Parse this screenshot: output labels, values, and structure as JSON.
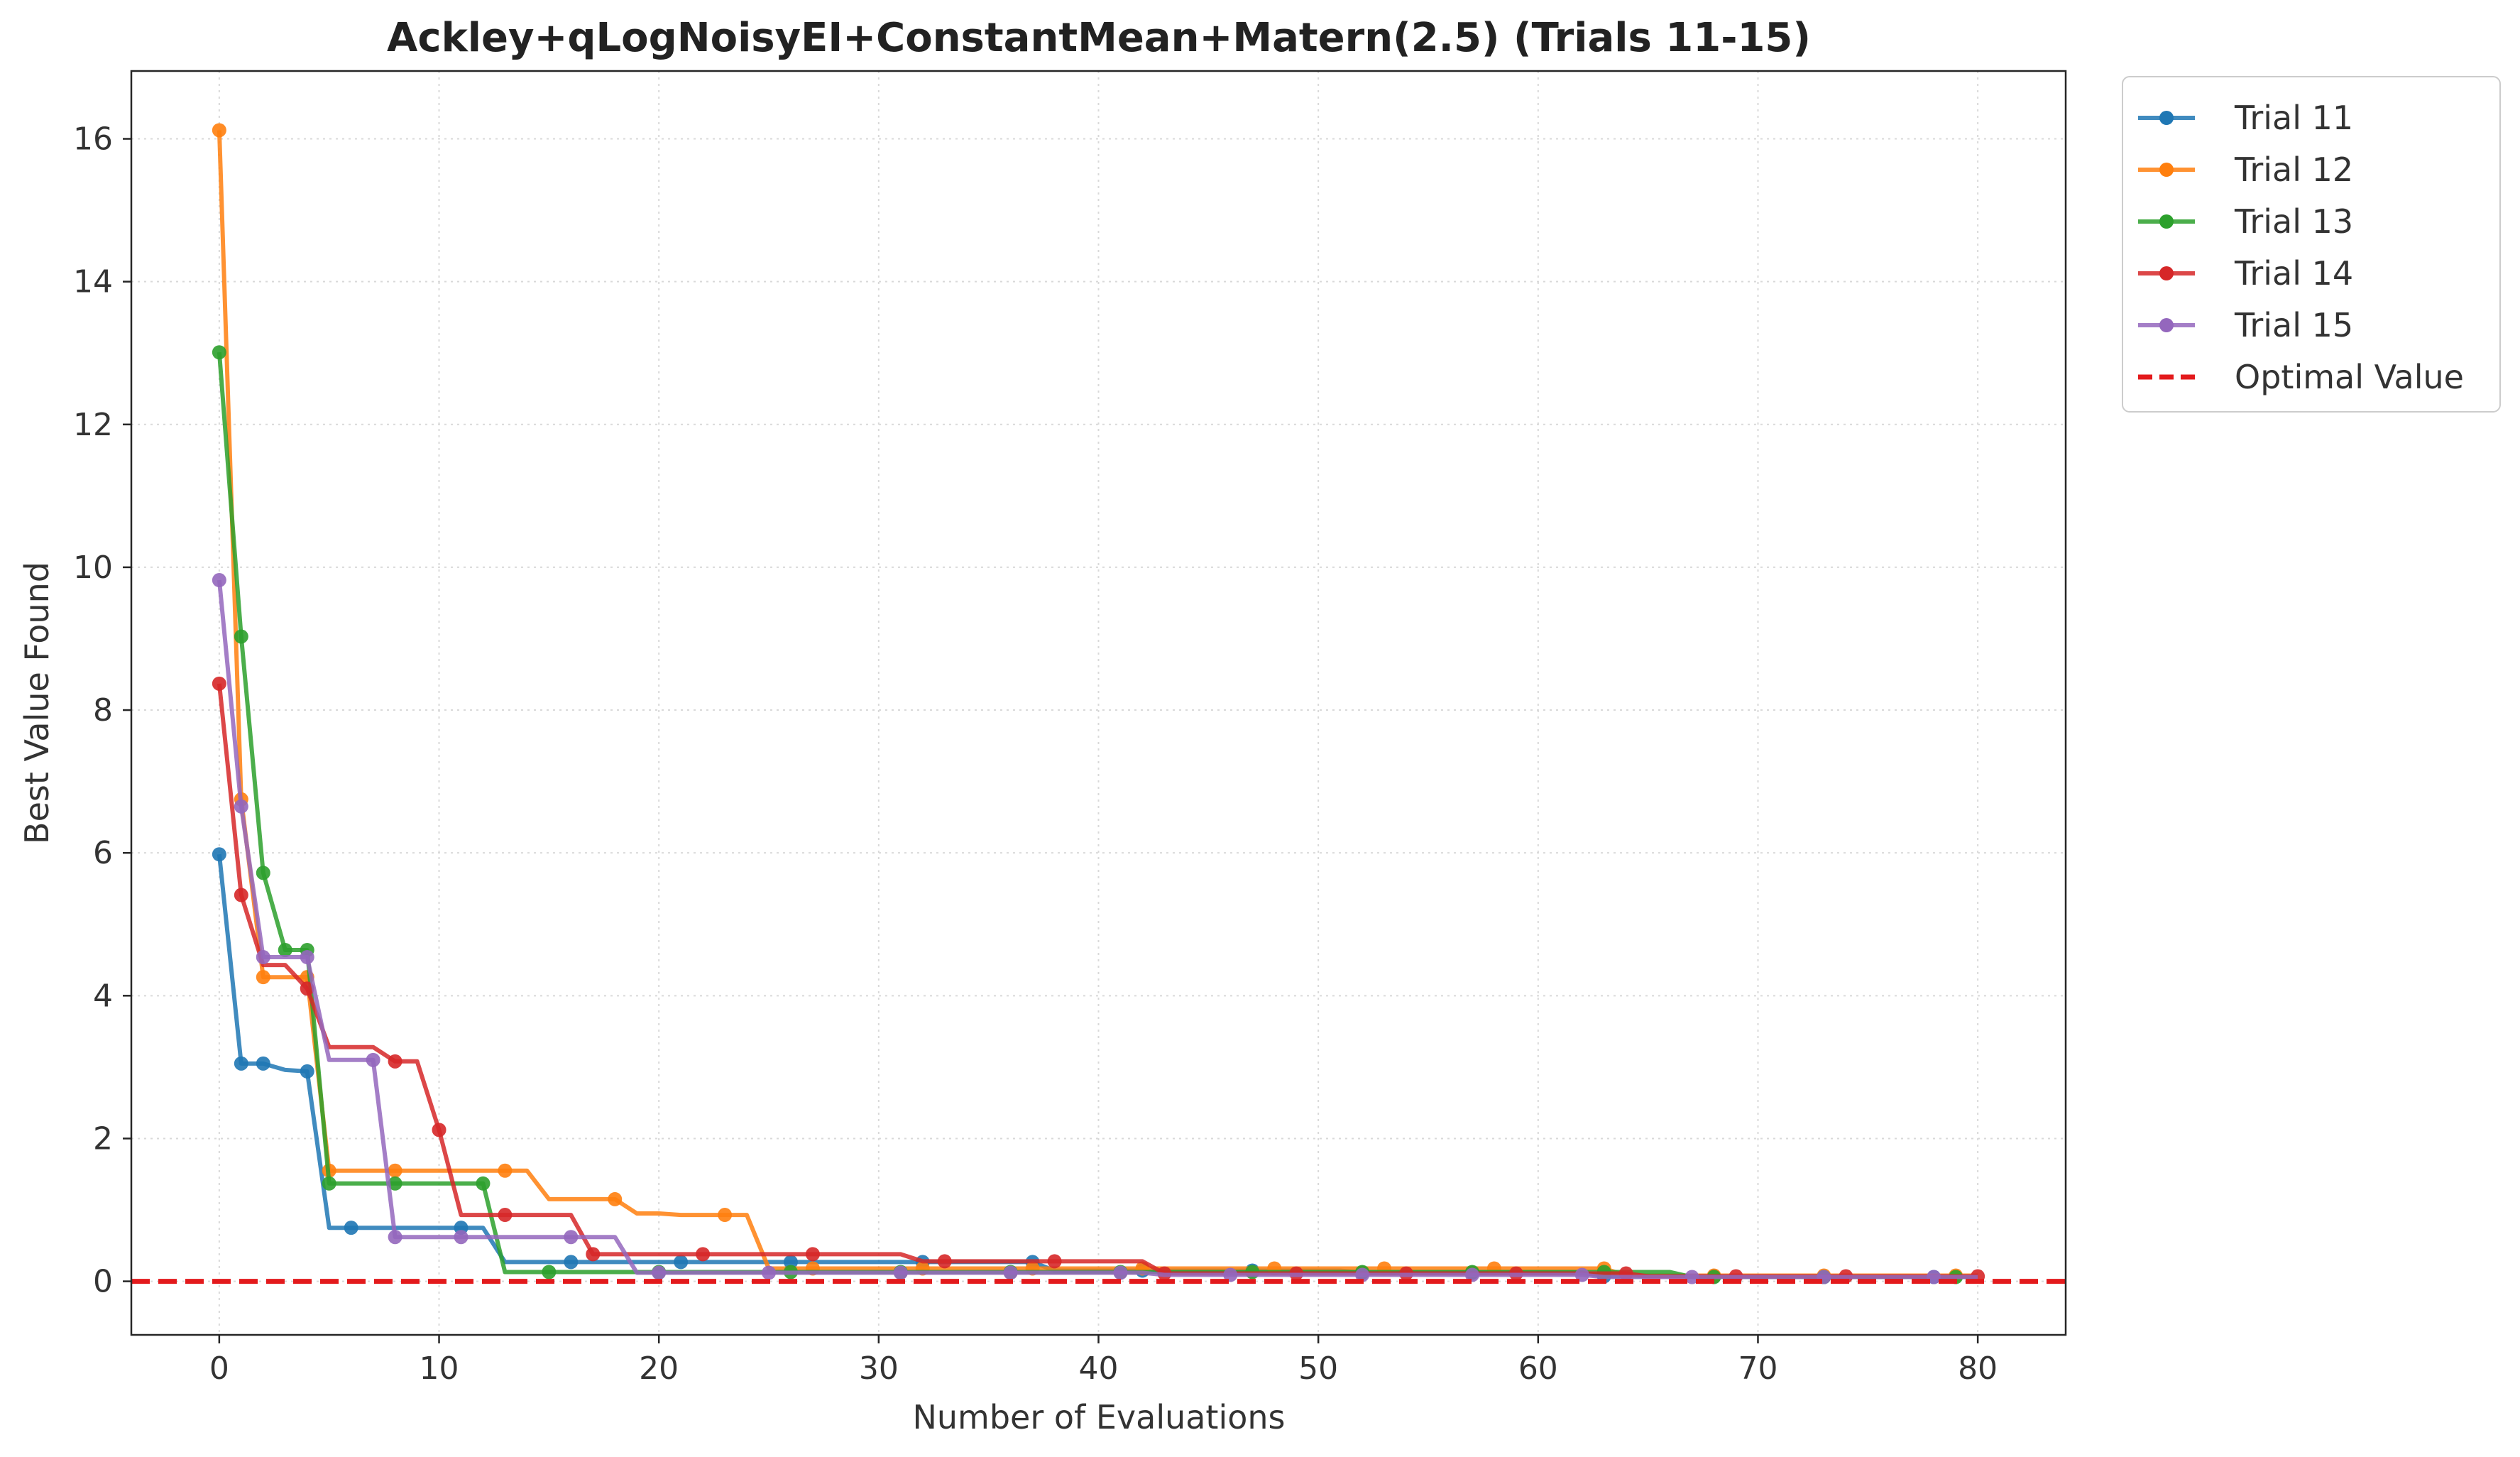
{
  "chart_data": {
    "type": "line",
    "title": "Ackley+qLogNoisyEI+ConstantMean+Matern(2.5) (Trials 11-15)",
    "xlabel": "Number of Evaluations",
    "ylabel": "Best Value Found",
    "xlim": [
      -4,
      84
    ],
    "ylim": [
      -0.75,
      16.95
    ],
    "xticks": [
      "0",
      "10",
      "20",
      "30",
      "40",
      "50",
      "60",
      "70",
      "80"
    ],
    "yticks": [
      "0",
      "2",
      "4",
      "6",
      "8",
      "10",
      "12",
      "14",
      "16"
    ],
    "grid": true,
    "legend_position": "outside-top-right",
    "series": [
      {
        "name": "Trial 11",
        "color": "#1f77b4",
        "x": [
          0,
          1,
          2,
          3,
          4,
          5,
          6,
          7,
          8,
          9,
          10,
          11,
          12,
          13,
          14,
          15,
          16,
          17,
          18,
          19,
          20,
          21,
          22,
          23,
          24,
          25,
          26,
          27,
          28,
          29,
          30,
          31,
          32,
          33,
          34,
          35,
          36,
          37,
          38,
          39,
          40,
          41,
          42,
          43,
          44,
          45,
          46,
          47,
          48,
          49,
          50,
          51,
          52,
          53,
          54,
          55,
          56,
          57,
          58,
          59,
          60,
          61,
          62,
          63,
          64,
          65,
          66,
          67,
          68,
          69,
          70,
          71,
          72,
          73,
          74,
          75,
          76,
          77,
          78,
          79,
          80
        ],
        "y": [
          5.98,
          3.05,
          3.05,
          2.96,
          2.94,
          0.75,
          0.75,
          0.75,
          0.75,
          0.75,
          0.75,
          0.75,
          0.75,
          0.27,
          0.27,
          0.27,
          0.27,
          0.27,
          0.27,
          0.27,
          0.27,
          0.27,
          0.27,
          0.27,
          0.27,
          0.27,
          0.27,
          0.27,
          0.27,
          0.27,
          0.27,
          0.27,
          0.27,
          0.27,
          0.27,
          0.27,
          0.27,
          0.27,
          0.15,
          0.15,
          0.15,
          0.15,
          0.15,
          0.15,
          0.15,
          0.15,
          0.15,
          0.15,
          0.15,
          0.15,
          0.15,
          0.15,
          0.12,
          0.12,
          0.12,
          0.12,
          0.12,
          0.12,
          0.12,
          0.12,
          0.12,
          0.12,
          0.12,
          0.07,
          0.07,
          0.07,
          0.07,
          0.07,
          0.07,
          0.07,
          0.07,
          0.07,
          0.07,
          0.06,
          0.06,
          0.06,
          0.06,
          0.06,
          0.06,
          0.06,
          0.06
        ],
        "markers": [
          0,
          1,
          2,
          4,
          6,
          11,
          16,
          21,
          26,
          32,
          37,
          42,
          47,
          52,
          57,
          63,
          68,
          73,
          78
        ]
      },
      {
        "name": "Trial 12",
        "color": "#ff7f0e",
        "x": [
          0,
          1,
          2,
          3,
          4,
          5,
          6,
          7,
          8,
          9,
          10,
          11,
          12,
          13,
          14,
          15,
          16,
          17,
          18,
          19,
          20,
          21,
          22,
          23,
          24,
          25,
          26,
          27,
          28,
          29,
          30,
          31,
          32,
          33,
          34,
          35,
          36,
          37,
          38,
          39,
          40,
          41,
          42,
          43,
          44,
          45,
          46,
          47,
          48,
          49,
          50,
          51,
          52,
          53,
          54,
          55,
          56,
          57,
          58,
          59,
          60,
          61,
          62,
          63,
          64,
          65,
          66,
          67,
          68,
          69,
          70,
          71,
          72,
          73,
          74,
          75,
          76,
          77,
          78,
          79,
          80
        ],
        "y": [
          16.12,
          6.75,
          4.26,
          4.26,
          4.26,
          1.55,
          1.55,
          1.55,
          1.55,
          1.55,
          1.55,
          1.55,
          1.55,
          1.55,
          1.55,
          1.15,
          1.15,
          1.15,
          1.15,
          0.95,
          0.95,
          0.93,
          0.93,
          0.93,
          0.93,
          0.18,
          0.18,
          0.18,
          0.18,
          0.18,
          0.18,
          0.18,
          0.18,
          0.18,
          0.18,
          0.18,
          0.18,
          0.18,
          0.18,
          0.18,
          0.18,
          0.18,
          0.18,
          0.18,
          0.18,
          0.18,
          0.18,
          0.18,
          0.18,
          0.18,
          0.18,
          0.18,
          0.18,
          0.18,
          0.18,
          0.18,
          0.18,
          0.18,
          0.18,
          0.18,
          0.18,
          0.18,
          0.18,
          0.18,
          0.08,
          0.08,
          0.08,
          0.08,
          0.08,
          0.08,
          0.08,
          0.08,
          0.08,
          0.08,
          0.08,
          0.08,
          0.08,
          0.08,
          0.08,
          0.08,
          0.08
        ],
        "markers": [
          0,
          1,
          2,
          4,
          5,
          8,
          13,
          18,
          23,
          27,
          32,
          37,
          42,
          48,
          53,
          58,
          63,
          68,
          73,
          79
        ]
      },
      {
        "name": "Trial 13",
        "color": "#2ca02c",
        "x": [
          0,
          1,
          2,
          3,
          4,
          5,
          6,
          7,
          8,
          9,
          10,
          11,
          12,
          13,
          14,
          15,
          16,
          17,
          18,
          19,
          20,
          21,
          22,
          23,
          24,
          25,
          26,
          27,
          28,
          29,
          30,
          31,
          32,
          33,
          34,
          35,
          36,
          37,
          38,
          39,
          40,
          41,
          42,
          43,
          44,
          45,
          46,
          47,
          48,
          49,
          50,
          51,
          52,
          53,
          54,
          55,
          56,
          57,
          58,
          59,
          60,
          61,
          62,
          63,
          64,
          65,
          66,
          67,
          68,
          69,
          70,
          71,
          72,
          73,
          74,
          75,
          76,
          77,
          78,
          79,
          80
        ],
        "y": [
          13.01,
          9.03,
          5.72,
          4.64,
          4.64,
          1.37,
          1.37,
          1.37,
          1.37,
          1.37,
          1.37,
          1.37,
          1.37,
          0.13,
          0.13,
          0.13,
          0.13,
          0.13,
          0.13,
          0.13,
          0.13,
          0.13,
          0.13,
          0.13,
          0.13,
          0.13,
          0.13,
          0.13,
          0.13,
          0.13,
          0.13,
          0.13,
          0.13,
          0.13,
          0.13,
          0.13,
          0.13,
          0.13,
          0.13,
          0.13,
          0.13,
          0.13,
          0.13,
          0.13,
          0.13,
          0.13,
          0.13,
          0.13,
          0.13,
          0.13,
          0.13,
          0.13,
          0.13,
          0.13,
          0.13,
          0.13,
          0.13,
          0.13,
          0.13,
          0.13,
          0.13,
          0.13,
          0.13,
          0.13,
          0.13,
          0.13,
          0.13,
          0.06,
          0.06,
          0.06,
          0.06,
          0.06,
          0.06,
          0.06,
          0.06,
          0.06,
          0.06,
          0.06,
          0.06,
          0.06,
          0.06
        ],
        "markers": [
          0,
          1,
          2,
          3,
          4,
          5,
          8,
          12,
          15,
          20,
          26,
          31,
          36,
          41,
          47,
          52,
          57,
          63,
          68,
          73,
          79
        ]
      },
      {
        "name": "Trial 14",
        "color": "#d62728",
        "x": [
          0,
          1,
          2,
          3,
          4,
          5,
          6,
          7,
          8,
          9,
          10,
          11,
          12,
          13,
          14,
          15,
          16,
          17,
          18,
          19,
          20,
          21,
          22,
          23,
          24,
          25,
          26,
          27,
          28,
          29,
          30,
          31,
          32,
          33,
          34,
          35,
          36,
          37,
          38,
          39,
          40,
          41,
          42,
          43,
          44,
          45,
          46,
          47,
          48,
          49,
          50,
          51,
          52,
          53,
          54,
          55,
          56,
          57,
          58,
          59,
          60,
          61,
          62,
          63,
          64,
          65,
          66,
          67,
          68,
          69,
          70,
          71,
          72,
          73,
          74,
          75,
          76,
          77,
          78,
          79,
          80
        ],
        "y": [
          8.37,
          5.41,
          4.43,
          4.43,
          4.1,
          3.28,
          3.28,
          3.28,
          3.08,
          3.08,
          2.12,
          0.93,
          0.93,
          0.93,
          0.93,
          0.93,
          0.93,
          0.38,
          0.38,
          0.38,
          0.38,
          0.38,
          0.38,
          0.38,
          0.38,
          0.38,
          0.38,
          0.38,
          0.38,
          0.38,
          0.38,
          0.38,
          0.28,
          0.28,
          0.28,
          0.28,
          0.28,
          0.28,
          0.28,
          0.28,
          0.28,
          0.28,
          0.28,
          0.11,
          0.11,
          0.11,
          0.11,
          0.11,
          0.11,
          0.11,
          0.11,
          0.11,
          0.11,
          0.11,
          0.11,
          0.11,
          0.11,
          0.11,
          0.11,
          0.11,
          0.11,
          0.11,
          0.11,
          0.11,
          0.11,
          0.07,
          0.07,
          0.07,
          0.07,
          0.07,
          0.07,
          0.07,
          0.07,
          0.07,
          0.07,
          0.07,
          0.07,
          0.07,
          0.07,
          0.07,
          0.07
        ],
        "markers": [
          0,
          1,
          4,
          8,
          10,
          13,
          17,
          22,
          27,
          33,
          38,
          43,
          49,
          54,
          59,
          64,
          69,
          74,
          80
        ]
      },
      {
        "name": "Trial 15",
        "color": "#9467bd",
        "x": [
          0,
          1,
          2,
          3,
          4,
          5,
          6,
          7,
          8,
          9,
          10,
          11,
          12,
          13,
          14,
          15,
          16,
          17,
          18,
          19,
          20,
          21,
          22,
          23,
          24,
          25,
          26,
          27,
          28,
          29,
          30,
          31,
          32,
          33,
          34,
          35,
          36,
          37,
          38,
          39,
          40,
          41,
          42,
          43,
          44,
          45,
          46,
          47,
          48,
          49,
          50,
          51,
          52,
          53,
          54,
          55,
          56,
          57,
          58,
          59,
          60,
          61,
          62,
          63,
          64,
          65,
          66,
          67,
          68,
          69,
          70,
          71,
          72,
          73,
          74,
          75,
          76,
          77,
          78,
          79,
          80
        ],
        "y": [
          9.82,
          6.65,
          4.54,
          4.54,
          4.54,
          3.1,
          3.1,
          3.1,
          0.62,
          0.62,
          0.62,
          0.62,
          0.62,
          0.62,
          0.62,
          0.62,
          0.62,
          0.62,
          0.62,
          0.12,
          0.12,
          0.12,
          0.12,
          0.12,
          0.12,
          0.12,
          0.12,
          0.12,
          0.12,
          0.12,
          0.12,
          0.12,
          0.12,
          0.12,
          0.12,
          0.12,
          0.12,
          0.12,
          0.12,
          0.12,
          0.12,
          0.12,
          0.12,
          0.09,
          0.09,
          0.09,
          0.09,
          0.09,
          0.09,
          0.09,
          0.09,
          0.09,
          0.09,
          0.09,
          0.09,
          0.09,
          0.09,
          0.09,
          0.09,
          0.09,
          0.09,
          0.09,
          0.09,
          0.06,
          0.06,
          0.06,
          0.06,
          0.06,
          0.06,
          0.06,
          0.06,
          0.06,
          0.06,
          0.06,
          0.06,
          0.06,
          0.06,
          0.06,
          0.06,
          0.06,
          0.06
        ],
        "markers": [
          0,
          1,
          2,
          4,
          7,
          8,
          11,
          16,
          20,
          25,
          31,
          36,
          41,
          46,
          52,
          57,
          62,
          67,
          73,
          78
        ]
      }
    ],
    "reference_line": {
      "name": "Optimal Value",
      "y": 0,
      "color": "#e31a1c",
      "style": "dashed"
    }
  }
}
